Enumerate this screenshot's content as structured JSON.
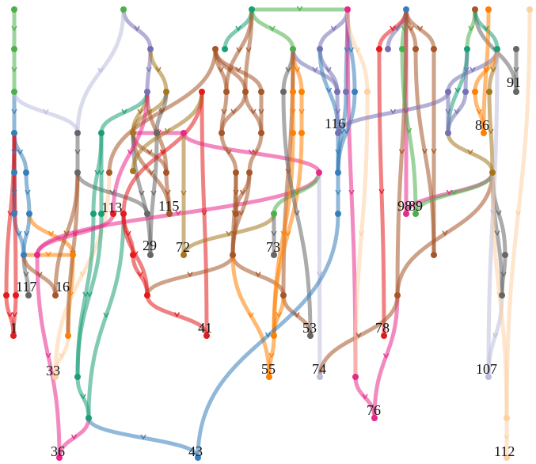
{
  "labels": [
    "1",
    "117",
    "16",
    "33",
    "36",
    "113",
    "29",
    "115",
    "72",
    "73",
    "41",
    "55",
    "53",
    "74",
    "116",
    "98",
    "89",
    "78",
    "76",
    "43",
    "86",
    "91",
    "107",
    "112"
  ],
  "colors": {
    "red": "#e41a1c",
    "blue": "#377eb8",
    "green": "#4daf4a",
    "purple": "#984ea3",
    "orange": "#ff7f00",
    "brown": "#a65628",
    "pink": "#e7298a",
    "gray": "#666666",
    "teal": "#1b9e77",
    "lavender": "#bcbddc",
    "peach": "#fdd0a2",
    "olive": "#a6761d",
    "slate": "#7570b3"
  }
}
